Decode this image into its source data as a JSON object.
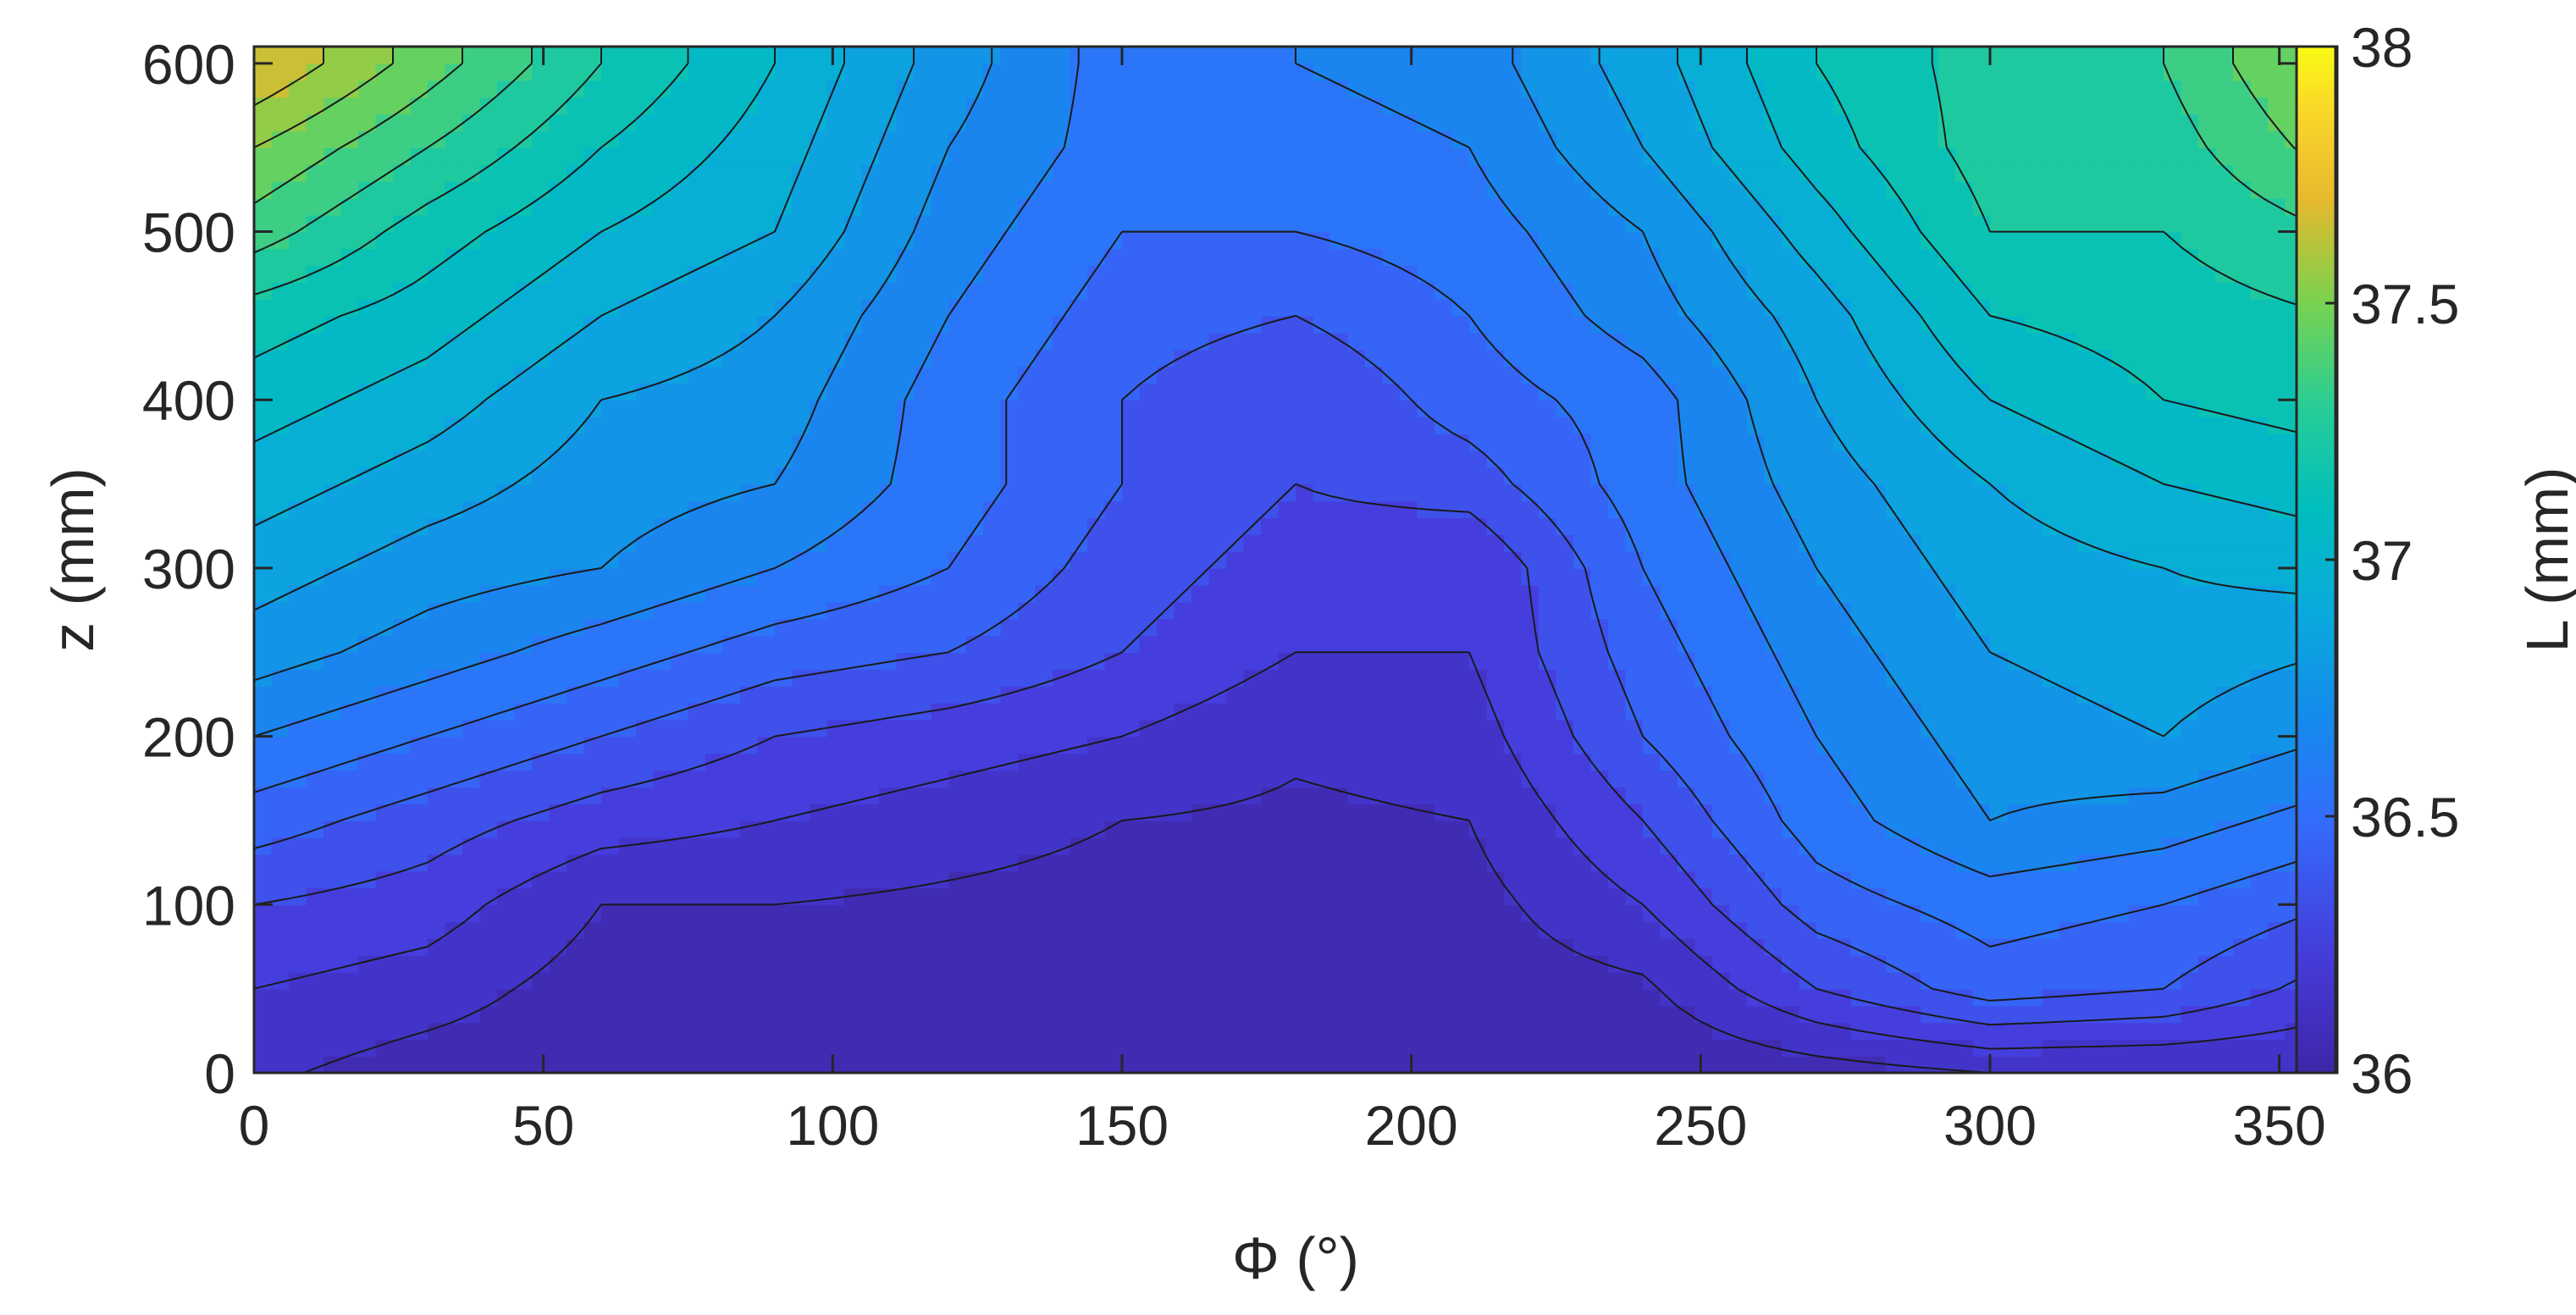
{
  "chart_data": {
    "type": "heatmap",
    "style": "filled contour",
    "xlabel": "Φ (°)",
    "ylabel": "z (mm)",
    "colorbar_label": "L (mm)",
    "xlim": [
      0,
      360
    ],
    "ylim": [
      0,
      610
    ],
    "x_ticks": [
      0,
      50,
      100,
      150,
      200,
      250,
      300,
      350
    ],
    "y_ticks": [
      0,
      100,
      200,
      300,
      400,
      500,
      600
    ],
    "color_ticks": [
      36,
      36.5,
      37,
      37.5,
      38
    ],
    "color_range": [
      36,
      38
    ],
    "colormap": "parula",
    "contour_levels": [
      36.1,
      36.2,
      36.3,
      36.4,
      36.5,
      36.6,
      36.7,
      36.8,
      36.9,
      37.0,
      37.1,
      37.2,
      37.3,
      37.4,
      37.5,
      37.6,
      37.7
    ],
    "phi": [
      0,
      30,
      60,
      90,
      120,
      150,
      180,
      210,
      240,
      270,
      300,
      330,
      360
    ],
    "z": [
      0,
      50,
      100,
      150,
      200,
      250,
      300,
      350,
      400,
      450,
      500,
      550,
      600
    ],
    "values": [
      [
        36.12,
        36.05,
        36.02,
        36.0,
        36.0,
        36.0,
        36.0,
        36.0,
        36.0,
        36.05,
        36.1,
        36.1,
        36.1
      ],
      [
        36.2,
        36.15,
        36.05,
        36.02,
        36.02,
        36.02,
        36.02,
        36.04,
        36.08,
        36.3,
        36.45,
        36.4,
        36.25
      ],
      [
        36.3,
        36.25,
        36.1,
        36.1,
        36.08,
        36.06,
        36.05,
        36.06,
        36.2,
        36.45,
        36.55,
        36.5,
        36.4
      ],
      [
        36.45,
        36.35,
        36.25,
        36.2,
        36.15,
        36.1,
        36.08,
        36.1,
        36.3,
        36.55,
        36.7,
        36.65,
        36.55
      ],
      [
        36.6,
        36.5,
        36.4,
        36.3,
        36.25,
        36.2,
        36.12,
        36.15,
        36.4,
        36.6,
        36.75,
        36.8,
        36.7
      ],
      [
        36.75,
        36.65,
        36.55,
        36.45,
        36.4,
        36.3,
        36.2,
        36.2,
        36.45,
        36.65,
        36.8,
        36.85,
        36.8
      ],
      [
        36.85,
        36.75,
        36.7,
        36.6,
        36.5,
        36.35,
        36.25,
        36.2,
        36.5,
        36.7,
        36.85,
        36.9,
        36.95
      ],
      [
        36.95,
        36.85,
        36.75,
        36.7,
        36.55,
        36.4,
        36.3,
        36.35,
        36.55,
        36.75,
        36.9,
        37.0,
        37.05
      ],
      [
        37.05,
        36.95,
        36.8,
        36.75,
        36.55,
        36.4,
        36.3,
        36.45,
        36.55,
        36.8,
        37.0,
        37.1,
        37.15
      ],
      [
        37.15,
        37.05,
        36.9,
        36.8,
        36.6,
        36.45,
        36.4,
        36.5,
        36.65,
        36.85,
        37.1,
        37.15,
        37.2
      ],
      [
        37.35,
        37.15,
        37.0,
        36.9,
        36.65,
        36.5,
        36.5,
        36.55,
        36.7,
        36.95,
        37.2,
        37.2,
        37.3
      ],
      [
        37.5,
        37.3,
        37.1,
        36.95,
        36.7,
        36.55,
        36.55,
        36.6,
        36.8,
        37.05,
        37.25,
        37.25,
        37.45
      ],
      [
        37.7,
        37.45,
        37.2,
        37.0,
        36.75,
        36.55,
        36.6,
        36.65,
        36.85,
        37.1,
        37.25,
        37.3,
        37.55
      ]
    ]
  }
}
